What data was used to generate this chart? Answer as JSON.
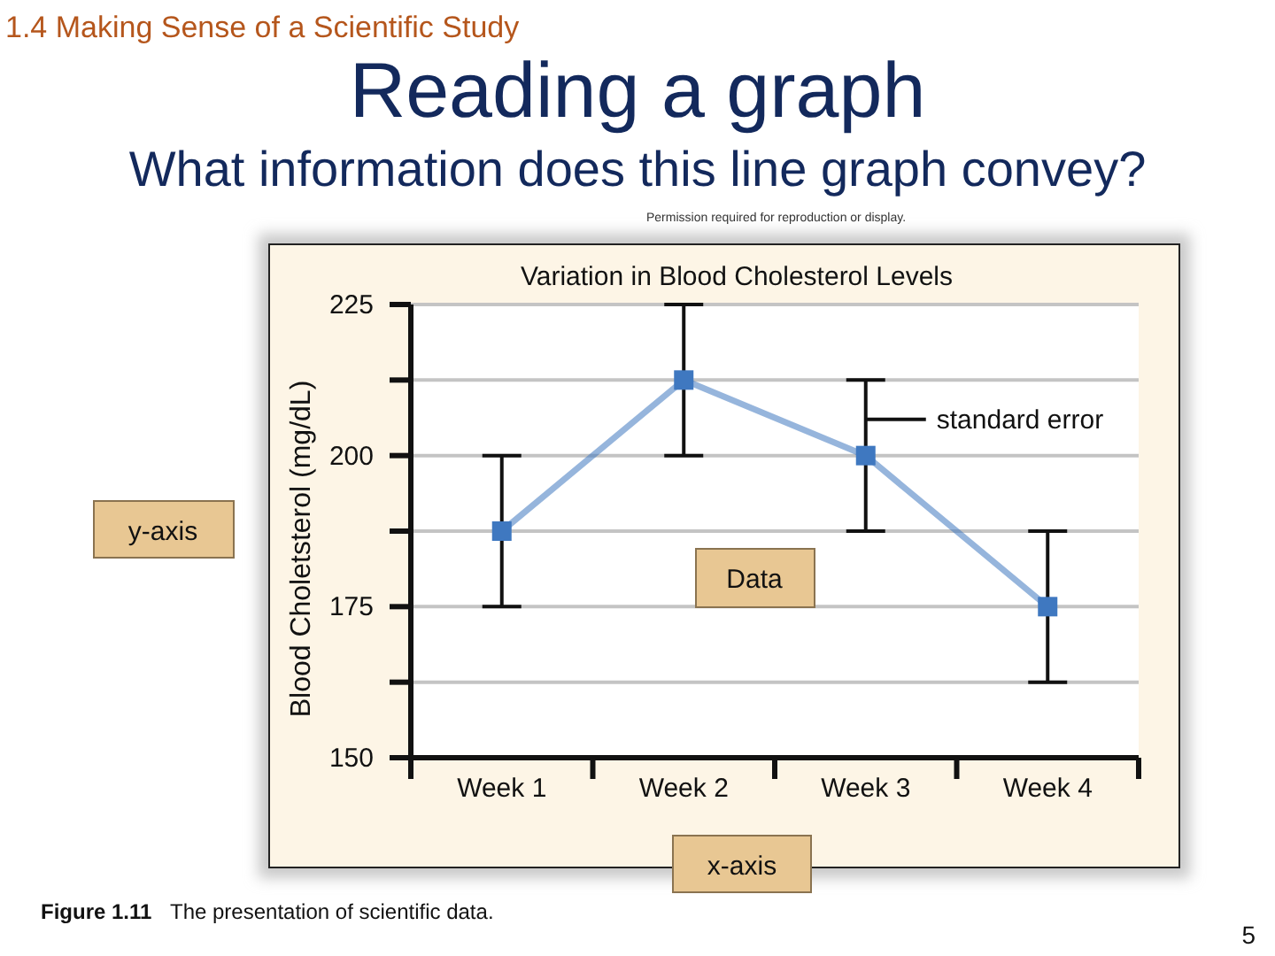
{
  "chart_data": {
    "type": "line",
    "title": "Variation in Blood Cholesterol Levels",
    "ylabel": "Blood Choletsterol (mg/dL)",
    "categories": [
      "Week 1",
      "Week 2",
      "Week 3",
      "Week 4"
    ],
    "series": [
      {
        "color": "#3f78c0",
        "values": [
          187.5,
          212.5,
          200,
          175
        ],
        "errors": [
          12.5,
          12.5,
          12.5,
          12.5
        ]
      }
    ],
    "ylim": [
      150,
      225
    ],
    "yticks": [
      150,
      {
        "value": 162.5,
        "label": null
      },
      175,
      {
        "value": 187.5,
        "label": null
      },
      200,
      {
        "value": 212.5,
        "label": null
      },
      225
    ],
    "grid": "y",
    "marker": "square",
    "line_style": "solid",
    "annotations": [
      "1.4  Making Sense of a Scientific Study",
      "Reading a graph",
      "What information does this line graph convey?",
      "Permission required for reproduction or display.",
      "Data",
      "y-axis",
      "x-axis",
      "Figure 1.11",
      "The presentation of scientific data.",
      "5",
      {
        "text": "standard error",
        "x": "Week 3",
        "y": 206
      }
    ]
  }
}
